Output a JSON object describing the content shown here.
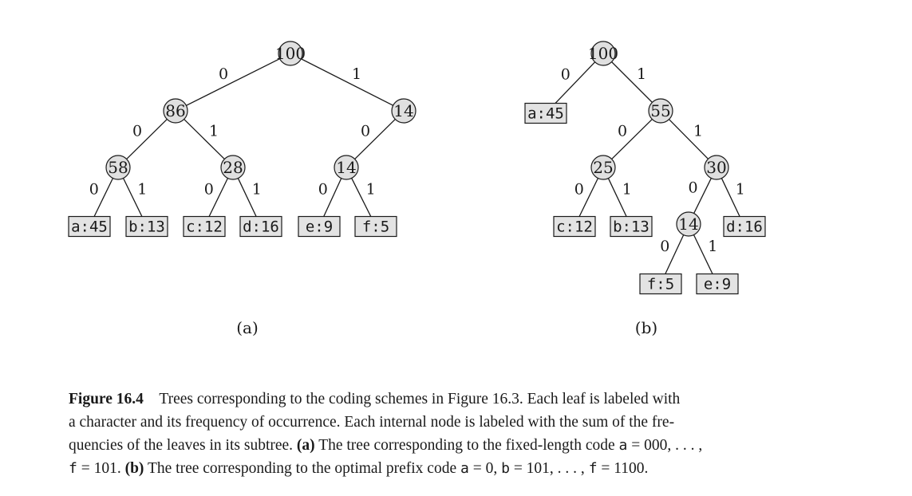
{
  "trees": [
    {
      "panel_label": "(a)",
      "nodes": [
        {
          "id": "a100",
          "label": "100",
          "kind": "internal"
        },
        {
          "id": "a86",
          "label": "86",
          "kind": "internal"
        },
        {
          "id": "a14r",
          "label": "14",
          "kind": "internal"
        },
        {
          "id": "a58",
          "label": "58",
          "kind": "internal"
        },
        {
          "id": "a28",
          "label": "28",
          "kind": "internal"
        },
        {
          "id": "a14",
          "label": "14",
          "kind": "internal"
        },
        {
          "id": "aa",
          "label": "a:45",
          "kind": "leaf"
        },
        {
          "id": "ab",
          "label": "b:13",
          "kind": "leaf"
        },
        {
          "id": "ac",
          "label": "c:12",
          "kind": "leaf"
        },
        {
          "id": "ad",
          "label": "d:16",
          "kind": "leaf"
        },
        {
          "id": "ae",
          "label": "e:9",
          "kind": "leaf"
        },
        {
          "id": "af",
          "label": "f:5",
          "kind": "leaf"
        }
      ],
      "edges": [
        {
          "from": "a100",
          "to": "a86",
          "label": "0"
        },
        {
          "from": "a100",
          "to": "a14r",
          "label": "1"
        },
        {
          "from": "a86",
          "to": "a58",
          "label": "0"
        },
        {
          "from": "a86",
          "to": "a28",
          "label": "1"
        },
        {
          "from": "a14r",
          "to": "a14",
          "label": "0"
        },
        {
          "from": "a58",
          "to": "aa",
          "label": "0"
        },
        {
          "from": "a58",
          "to": "ab",
          "label": "1"
        },
        {
          "from": "a28",
          "to": "ac",
          "label": "0"
        },
        {
          "from": "a28",
          "to": "ad",
          "label": "1"
        },
        {
          "from": "a14",
          "to": "ae",
          "label": "0"
        },
        {
          "from": "a14",
          "to": "af",
          "label": "1"
        }
      ]
    },
    {
      "panel_label": "(b)",
      "nodes": [
        {
          "id": "b100",
          "label": "100",
          "kind": "internal"
        },
        {
          "id": "ba",
          "label": "a:45",
          "kind": "leaf"
        },
        {
          "id": "b55",
          "label": "55",
          "kind": "internal"
        },
        {
          "id": "b25",
          "label": "25",
          "kind": "internal"
        },
        {
          "id": "b30",
          "label": "30",
          "kind": "internal"
        },
        {
          "id": "bc",
          "label": "c:12",
          "kind": "leaf"
        },
        {
          "id": "bb",
          "label": "b:13",
          "kind": "leaf"
        },
        {
          "id": "b14",
          "label": "14",
          "kind": "internal"
        },
        {
          "id": "bd",
          "label": "d:16",
          "kind": "leaf"
        },
        {
          "id": "bf",
          "label": "f:5",
          "kind": "leaf"
        },
        {
          "id": "be",
          "label": "e:9",
          "kind": "leaf"
        }
      ],
      "edges": [
        {
          "from": "b100",
          "to": "ba",
          "label": "0"
        },
        {
          "from": "b100",
          "to": "b55",
          "label": "1"
        },
        {
          "from": "b55",
          "to": "b25",
          "label": "0"
        },
        {
          "from": "b55",
          "to": "b30",
          "label": "1"
        },
        {
          "from": "b25",
          "to": "bc",
          "label": "0"
        },
        {
          "from": "b25",
          "to": "bb",
          "label": "1"
        },
        {
          "from": "b30",
          "to": "b14",
          "label": "0"
        },
        {
          "from": "b30",
          "to": "bd",
          "label": "1"
        },
        {
          "from": "b14",
          "to": "bf",
          "label": "0"
        },
        {
          "from": "b14",
          "to": "be",
          "label": "1"
        }
      ]
    }
  ],
  "caption": {
    "figure_label": "Figure 16.4",
    "line1": "Trees corresponding to the coding schemes in Figure 16.3. Each leaf is labeled with",
    "line2": "a character and its frequency of occurrence. Each internal node is labeled with the sum of the fre-",
    "line3_a": "quencies of the leaves in its subtree.",
    "line3_b": "(a)",
    "line3_c": "The tree corresponding to the fixed-length code",
    "line3_d": "a",
    "line3_e": "= 000, . . . ,",
    "line4_a": "f",
    "line4_b": "= 101.",
    "line4_c": "(b)",
    "line4_d": "The tree corresponding to the optimal prefix code",
    "line4_e": "a",
    "line4_f": "= 0,",
    "line4_g": "b",
    "line4_h": "= 101, . . . ,",
    "line4_i": "f",
    "line4_j": "= 1100."
  }
}
